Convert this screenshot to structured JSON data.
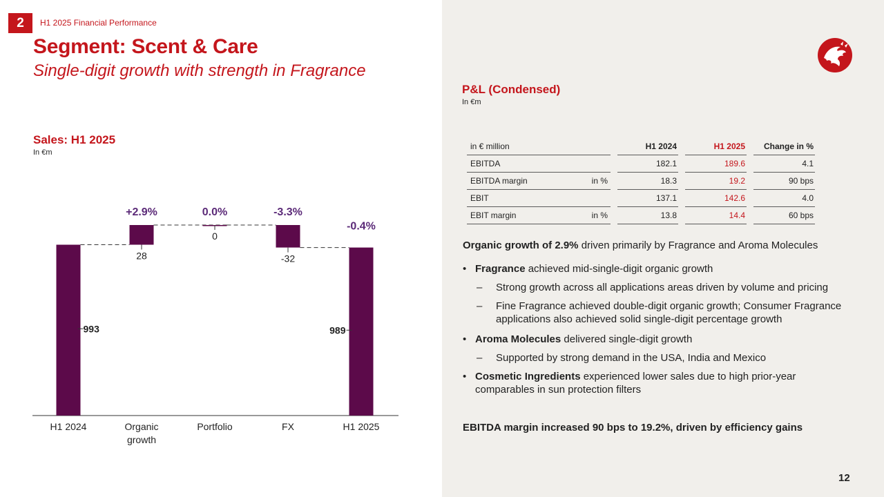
{
  "header": {
    "section_number": "2",
    "section_label": "H1 2025 Financial Performance",
    "title": "Segment: Scent & Care",
    "subtitle": "Single-digit growth with strength in Fragrance"
  },
  "chart": {
    "title": "Sales: H1 2025",
    "unit": "In €m"
  },
  "chart_data": {
    "type": "bar",
    "subtype": "waterfall",
    "categories": [
      "H1 2024",
      "Organic growth",
      "Portfolio",
      "FX",
      "H1 2025"
    ],
    "values": [
      993,
      28,
      0,
      -32,
      989
    ],
    "bar_kinds": [
      "total",
      "delta",
      "delta",
      "delta",
      "total"
    ],
    "value_labels": [
      "993",
      "28",
      "0",
      "-32",
      "989"
    ],
    "percent_labels": [
      "",
      "+2.9%",
      "0.0%",
      "-3.3%",
      "-0.4%"
    ],
    "colors": {
      "bar": "#5c0a4a",
      "percent": "#5b2a78"
    },
    "xlabel": "",
    "ylabel": ""
  },
  "pl": {
    "title": "P&L (Condensed)",
    "unit": "In €m",
    "columns": [
      "in € million",
      "H1 2024",
      "H1 2025",
      "Change in %"
    ],
    "rows": [
      {
        "label": "EBITDA",
        "unit": "",
        "h24": "182.1",
        "h25": "189.6",
        "chg": "4.1"
      },
      {
        "label": "EBITDA margin",
        "unit": "in %",
        "h24": "18.3",
        "h25": "19.2",
        "chg": "90 bps"
      },
      {
        "label": "EBIT",
        "unit": "",
        "h24": "137.1",
        "h25": "142.6",
        "chg": "4.0"
      },
      {
        "label": "EBIT margin",
        "unit": "in %",
        "h24": "13.8",
        "h25": "14.4",
        "chg": "60 bps"
      }
    ]
  },
  "commentary": {
    "lead_bold": "Organic growth of 2.9%",
    "lead_rest": " driven primarily by Fragrance and Aroma Molecules",
    "bullets": [
      {
        "bold": "Fragrance",
        "rest": " achieved mid-single-digit organic growth",
        "subs": [
          "Strong growth across all applications areas driven by volume and pricing",
          "Fine Fragrance achieved double-digit organic growth; Consumer Fragrance applications also achieved solid single-digit percentage growth"
        ]
      },
      {
        "bold": "Aroma Molecules",
        "rest": " delivered single-digit growth",
        "subs": [
          "Supported by strong demand in the USA, India and Mexico"
        ]
      },
      {
        "bold": "Cosmetic Ingredients",
        "rest": " experienced lower sales due to high prior-year comparables in sun protection filters",
        "subs": []
      }
    ],
    "conclusion": "EBITDA margin increased 90 bps to 19.2%, driven by efficiency gains"
  },
  "footer": {
    "page_number": "12"
  },
  "colors": {
    "brand_red": "#c4161c",
    "panel_bg": "#f1efeb"
  },
  "icons": {
    "logo": "dragon-logo-icon"
  }
}
